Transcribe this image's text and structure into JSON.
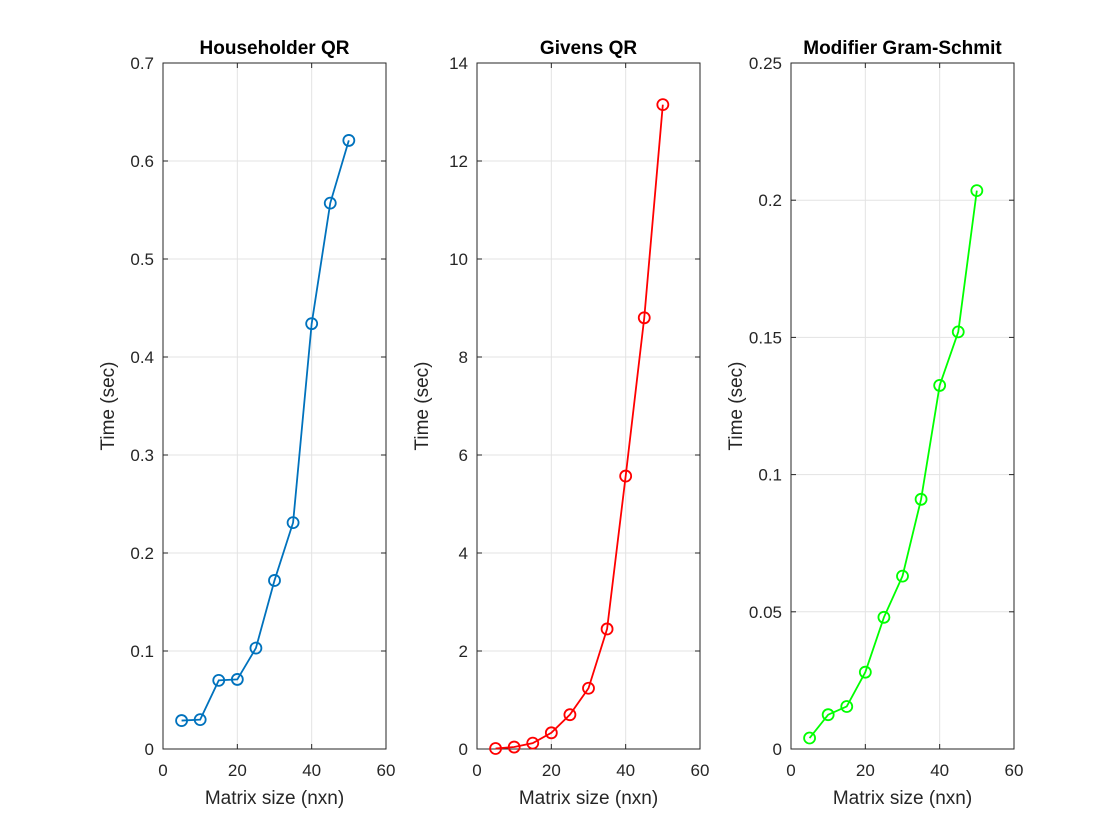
{
  "chart_data": [
    {
      "type": "line",
      "title": "Householder QR",
      "xlabel": "Matrix size (nxn)",
      "ylabel": "Time (sec)",
      "xlim": [
        0,
        60
      ],
      "ylim": [
        0,
        0.7
      ],
      "xticks": [
        "0",
        "20",
        "40",
        "60"
      ],
      "yticks": [
        "0",
        "0.1",
        "0.2",
        "0.3",
        "0.4",
        "0.5",
        "0.6",
        "0.7"
      ],
      "grid": true,
      "color": "#0072BD",
      "marker": "circle",
      "x": [
        5,
        10,
        15,
        20,
        25,
        30,
        35,
        40,
        45,
        50
      ],
      "y": [
        0.029,
        0.03,
        0.07,
        0.071,
        0.103,
        0.172,
        0.231,
        0.434,
        0.557,
        0.621
      ]
    },
    {
      "type": "line",
      "title": "Givens QR",
      "xlabel": "Matrix size (nxn)",
      "ylabel": "Time (sec)",
      "xlim": [
        0,
        60
      ],
      "ylim": [
        0,
        14
      ],
      "xticks": [
        "0",
        "20",
        "40",
        "60"
      ],
      "yticks": [
        "0",
        "2",
        "4",
        "6",
        "8",
        "10",
        "12",
        "14"
      ],
      "grid": true,
      "color": "#FF0000",
      "marker": "circle",
      "x": [
        5,
        10,
        15,
        20,
        25,
        30,
        35,
        40,
        45,
        50
      ],
      "y": [
        0.01,
        0.04,
        0.12,
        0.33,
        0.7,
        1.24,
        2.45,
        5.57,
        8.8,
        13.15
      ]
    },
    {
      "type": "line",
      "title": "Modifier Gram-Schmit",
      "xlabel": "Matrix size (nxn)",
      "ylabel": "Time (sec)",
      "xlim": [
        0,
        60
      ],
      "ylim": [
        0,
        0.25
      ],
      "xticks": [
        "0",
        "20",
        "40",
        "60"
      ],
      "yticks": [
        "0",
        "0.05",
        "0.1",
        "0.15",
        "0.2",
        "0.25"
      ],
      "grid": true,
      "color": "#00FF00",
      "marker": "circle",
      "x": [
        5,
        10,
        15,
        20,
        25,
        30,
        35,
        40,
        45,
        50
      ],
      "y": [
        0.004,
        0.0125,
        0.0155,
        0.028,
        0.048,
        0.063,
        0.091,
        0.1325,
        0.152,
        0.2035
      ]
    }
  ]
}
